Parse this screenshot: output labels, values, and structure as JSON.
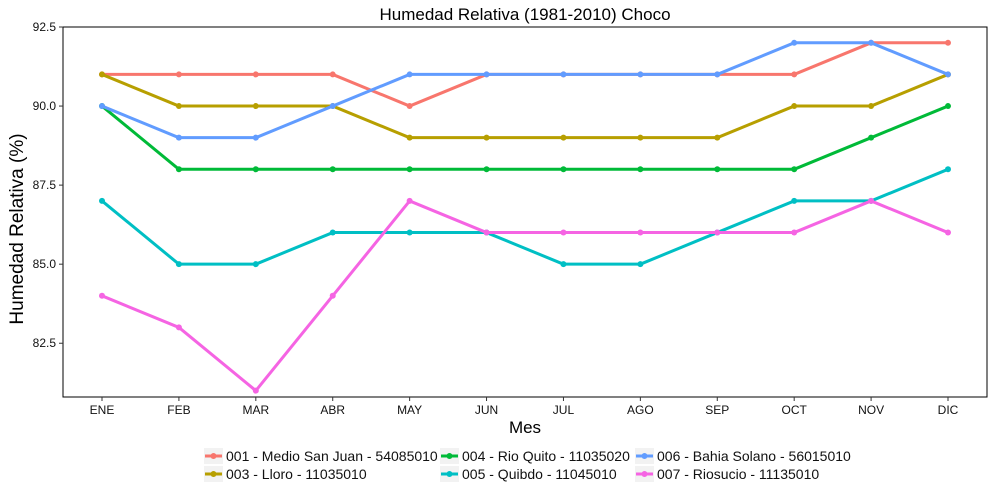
{
  "chart_data": {
    "type": "line",
    "title": "Humedad Relativa (1981-2010)  Choco",
    "xlabel": "Mes",
    "ylabel": "Humedad Relativa   (%)",
    "categories": [
      "ENE",
      "FEB",
      "MAR",
      "ABR",
      "MAY",
      "JUN",
      "JUL",
      "AGO",
      "SEP",
      "OCT",
      "NOV",
      "DIC"
    ],
    "yticks": [
      "82.5",
      "85.0",
      "87.5",
      "90.0",
      "92.5"
    ],
    "ylim": [
      80.8,
      92.5
    ],
    "grid": false,
    "legend_position": "bottom",
    "series": [
      {
        "name": "001 - Medio San Juan - 54085010",
        "color": "#F8766D",
        "values": [
          91,
          91,
          91,
          91,
          90,
          91,
          91,
          91,
          91,
          91,
          92,
          92
        ]
      },
      {
        "name": "003 - Lloro - 11035010",
        "color": "#B79F00",
        "values": [
          91,
          90,
          90,
          90,
          89,
          89,
          89,
          89,
          89,
          90,
          90,
          91
        ]
      },
      {
        "name": "004 - Rio Quito - 11035020",
        "color": "#00BA38",
        "values": [
          90,
          88,
          88,
          88,
          88,
          88,
          88,
          88,
          88,
          88,
          89,
          90
        ]
      },
      {
        "name": "005 - Quibdo - 11045010",
        "color": "#00BFC4",
        "values": [
          87,
          85,
          85,
          86,
          86,
          86,
          85,
          85,
          86,
          87,
          87,
          88
        ]
      },
      {
        "name": "006 - Bahia Solano - 56015010",
        "color": "#619CFF",
        "values": [
          90,
          89,
          89,
          90,
          91,
          91,
          91,
          91,
          91,
          92,
          92,
          91
        ]
      },
      {
        "name": "007 - Riosucio - 11135010",
        "color": "#F564E3",
        "values": [
          84,
          83,
          81,
          84,
          87,
          86,
          86,
          86,
          86,
          86,
          87,
          86
        ]
      }
    ]
  }
}
